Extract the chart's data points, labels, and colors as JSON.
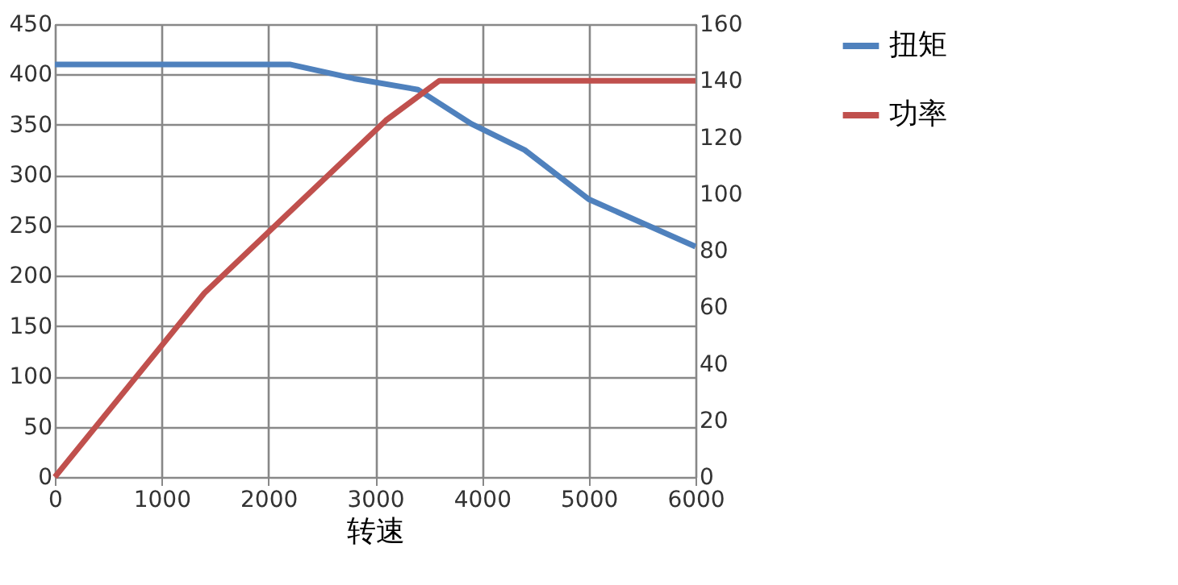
{
  "chart_data": {
    "type": "line",
    "xlabel": "转速",
    "xlim": [
      0,
      6000
    ],
    "xticks": [
      0,
      1000,
      2000,
      3000,
      4000,
      5000,
      6000
    ],
    "ylim": [
      0,
      450
    ],
    "yticks": [
      0,
      50,
      100,
      150,
      200,
      250,
      300,
      350,
      400,
      450
    ],
    "y2lim": [
      0,
      160
    ],
    "y2ticks": [
      0,
      20,
      40,
      60,
      80,
      100,
      120,
      140,
      160
    ],
    "grid": true,
    "legend": "right",
    "marker": "none",
    "line_style": "solid",
    "series": [
      {
        "name": "扭矩",
        "color": "#4f81bd",
        "x": [
          0,
          2200,
          2800,
          3400,
          3900,
          4400,
          5000,
          6000
        ],
        "values": [
          410,
          410,
          396,
          385,
          351,
          325,
          276,
          229
        ]
      },
      {
        "name": "功率",
        "color": "#c0504d",
        "axis": "y2",
        "x": [
          0,
          1400,
          3100,
          3350,
          3600,
          6000
        ],
        "values": [
          0,
          65,
          126,
          133,
          140,
          140
        ]
      }
    ]
  }
}
